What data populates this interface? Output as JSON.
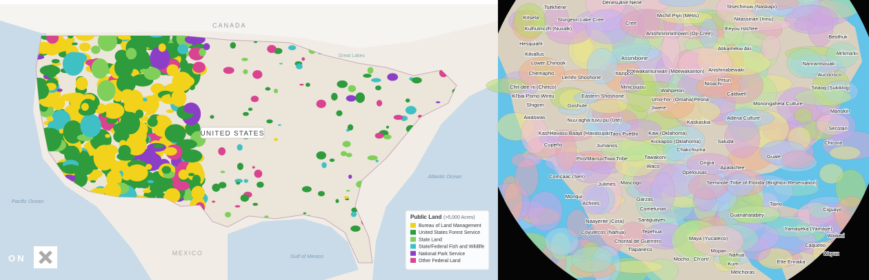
{
  "left_map": {
    "labels": [
      "CANADA",
      "UNITED STATES",
      "Great Lakes",
      "Pacific Ocean",
      "Atlantic Ocean",
      "Gulf of Mexico",
      "MEXICO"
    ],
    "legend": {
      "title": "Public Land",
      "subtitle": "(>5,000 Acres)",
      "items": [
        {
          "label": "Bureau of Land Management",
          "color": "#f2d21b"
        },
        {
          "label": "United States Forest Service",
          "color": "#2e9b3c"
        },
        {
          "label": "State Land",
          "color": "#7fcf5a"
        },
        {
          "label": "State/Federal Fish and Wildlife",
          "color": "#3fc0c4"
        },
        {
          "label": "National Park Service",
          "color": "#8c3fc6"
        },
        {
          "label": "Other Federal Land",
          "color": "#d9438f"
        }
      ]
    },
    "logo": "ON"
  },
  "right_map": {
    "labels": [
      "Tsēkhene",
      "Dënesųłiné Nené",
      "Michif Piyii (Métis)",
      "Stsechinuw (Naskapi)",
      "Kitsela",
      "Sturgeon Lake Cree",
      "Nitassinan (Innu)",
      "Kulhulmcilh (Nuxalk)",
      "Cree",
      "Anishinininiimowin (Oji-Cree)",
      "Eeyou Istchee",
      "Beothuk",
      "Hesquiaht",
      "Atikamekw Aki",
      "Mi'kma'ki",
      "Kikiallus",
      "Assiniboine",
      "Lower Chinook",
      "Bdewakantunwan (Mdewakanton)",
      "Anishinabewaki",
      "Nanrantsouak",
      "Chemapho",
      "Lemhi-Shoshone",
      "Itazipco",
      "Aucocisco",
      "Petun",
      "Chit-dee-ni (Chetco)",
      "Minicoujou",
      "Niūachi",
      "Sitaoq (Sukiklog)",
      "Kl'bai Pomo Wintu",
      "Eastern Shoshone",
      "Wahpeton",
      "Caldwell",
      "Shigom",
      "Goshute",
      "Umoⁿhoⁿ (Omaha)",
      "Peoria",
      "Monongahela Culture",
      "Jiwere",
      "Manokin",
      "Awaswas",
      "Nuu-agha-tuvu-pu (Ute)",
      "Kaskaskia",
      "Adena Culture",
      "Kashtik",
      "Havasu Baaja (Havasupai)",
      "Taos Pueblo",
      "Kaw (Oklahoma)",
      "Secotan",
      "Cupeño",
      "Jumanos",
      "Kickapoo (Oklahoma)",
      "Saluda",
      "Chicora",
      "Chakchiuma",
      "Piro/Manso/Tiwa Tribe",
      "Tawakoni",
      "Guale",
      "Waco",
      "Grigra",
      "Apalachee",
      "Opelousas",
      "Comcaac (Seri)",
      "Julimes",
      "Mascogo",
      "Seminole Tribe of Florida (Brighton Reservation)",
      "Monqui",
      "Garzas",
      "Taino",
      "Ciguayo",
      "Achires",
      "Cometunas",
      "Guanahatabey",
      "Saraguayes",
      "Náayerite (Cora)",
      "Yamayeka (Yamaye)",
      "Coyutecos (Nahua)",
      "Tepehua",
      "Chontal de Guerrero",
      "Tlapaneco",
      "Maya (Yucateco)",
      "Mopan",
      "Nahua",
      "Mocho",
      "Ch'orti'",
      "Kum",
      "Melchoras",
      "Waikeri",
      "Caquetio",
      "Ette Ennaka",
      "Wayuu"
    ]
  }
}
